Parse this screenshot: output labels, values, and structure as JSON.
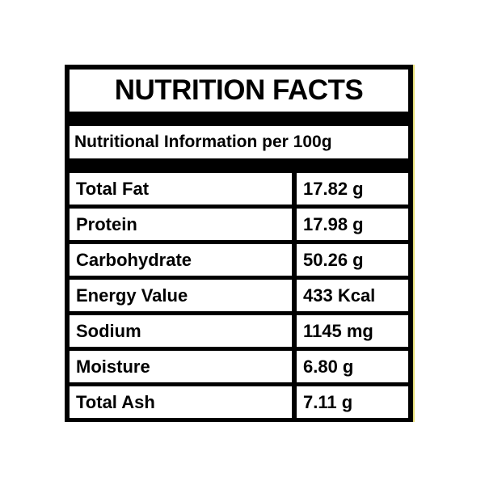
{
  "header": {
    "title": "NUTRITION FACTS",
    "subtitle": "Nutritional Information per 100g"
  },
  "table": {
    "rows": [
      [
        "Total Fat",
        "17.82 g"
      ],
      [
        "Protein",
        "17.98 g"
      ],
      [
        "Carbohydrate",
        "50.26 g"
      ],
      [
        "Energy Value",
        "433 Kcal"
      ],
      [
        "Sodium",
        "1145 mg"
      ],
      [
        "Moisture",
        "6.80 g"
      ],
      [
        "Total Ash",
        "7.11 g"
      ]
    ]
  }
}
